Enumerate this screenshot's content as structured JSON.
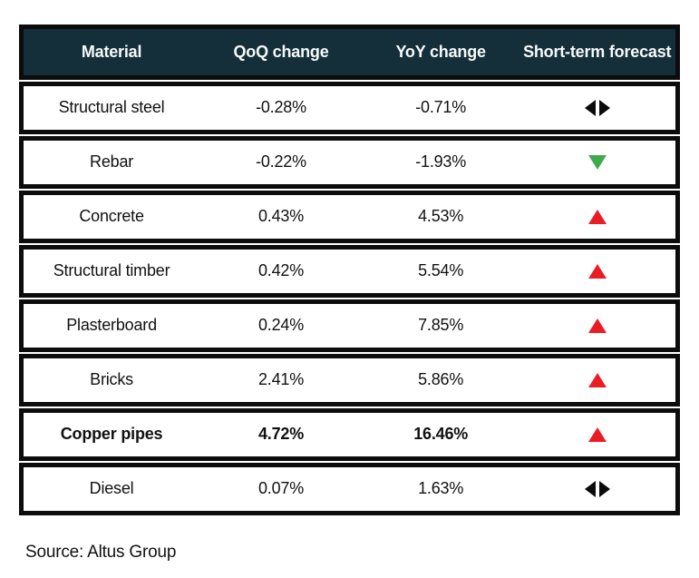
{
  "table": {
    "headers": [
      "Material",
      "QoQ change",
      "YoY change",
      "Short-term forecast"
    ],
    "rows": [
      {
        "material": "Structural steel",
        "qoq": "-0.28%",
        "yoy": "-0.71%",
        "forecast": "neutral",
        "bold": false
      },
      {
        "material": "Rebar",
        "qoq": "-0.22%",
        "yoy": "-1.93%",
        "forecast": "down",
        "bold": false
      },
      {
        "material": "Concrete",
        "qoq": "0.43%",
        "yoy": "4.53%",
        "forecast": "up",
        "bold": false
      },
      {
        "material": "Structural timber",
        "qoq": "0.42%",
        "yoy": "5.54%",
        "forecast": "up",
        "bold": false
      },
      {
        "material": "Plasterboard",
        "qoq": "0.24%",
        "yoy": "7.85%",
        "forecast": "up",
        "bold": false
      },
      {
        "material": "Bricks",
        "qoq": "2.41%",
        "yoy": "5.86%",
        "forecast": "up",
        "bold": false
      },
      {
        "material": "Copper pipes",
        "qoq": "4.72%",
        "yoy": "16.46%",
        "forecast": "up",
        "bold": true
      },
      {
        "material": "Diesel",
        "qoq": "0.07%",
        "yoy": "1.63%",
        "forecast": "neutral",
        "bold": false
      }
    ]
  },
  "source": {
    "label": "Source: Altus Group"
  },
  "colors": {
    "header_bg": "#142f3a",
    "border": "#0c0c0c",
    "up": "#ea1c24",
    "down": "#3faa4b",
    "neutral": "#0b0b0b"
  },
  "chart_data": {
    "type": "table",
    "title": "",
    "columns": [
      "Material",
      "QoQ change",
      "YoY change",
      "Short-term forecast"
    ],
    "rows": [
      [
        "Structural steel",
        -0.28,
        -0.71,
        "stable"
      ],
      [
        "Rebar",
        -0.22,
        -1.93,
        "down"
      ],
      [
        "Concrete",
        0.43,
        4.53,
        "up"
      ],
      [
        "Structural timber",
        0.42,
        5.54,
        "up"
      ],
      [
        "Plasterboard",
        0.24,
        7.85,
        "up"
      ],
      [
        "Bricks",
        2.41,
        5.86,
        "up"
      ],
      [
        "Copper pipes",
        4.72,
        16.46,
        "up"
      ],
      [
        "Diesel",
        0.07,
        1.63,
        "stable"
      ]
    ],
    "units": "percent",
    "source": "Source: Altus Group"
  }
}
